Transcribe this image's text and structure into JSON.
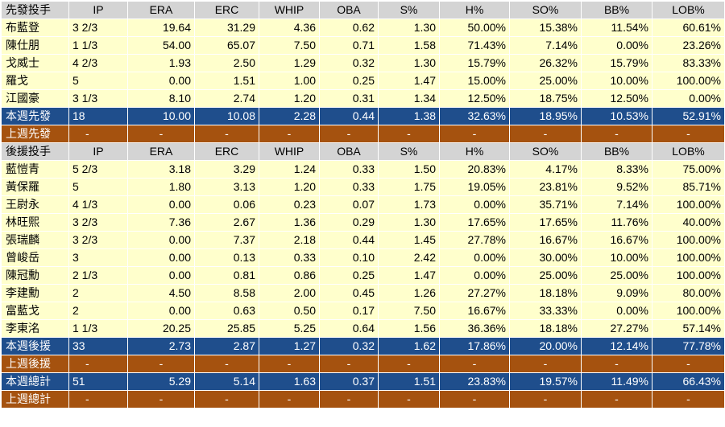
{
  "headers": {
    "starters": [
      "先發投手",
      "IP",
      "ERA",
      "ERC",
      "WHIP",
      "OBA",
      "S%",
      "H%",
      "SO%",
      "BB%",
      "LOB%"
    ],
    "relievers": [
      "後援投手",
      "IP",
      "ERA",
      "ERC",
      "WHIP",
      "OBA",
      "S%",
      "H%",
      "SO%",
      "BB%",
      "LOB%"
    ]
  },
  "starters": [
    [
      "布藍登",
      "3 2/3",
      "19.64",
      "31.29",
      "4.36",
      "0.62",
      "1.30",
      "50.00%",
      "15.38%",
      "11.54%",
      "60.61%"
    ],
    [
      "陳仕朋",
      "1 1/3",
      "54.00",
      "65.07",
      "7.50",
      "0.71",
      "1.58",
      "71.43%",
      "7.14%",
      "0.00%",
      "23.26%"
    ],
    [
      "戈威士",
      "4 2/3",
      "1.93",
      "2.50",
      "1.29",
      "0.32",
      "1.30",
      "15.79%",
      "26.32%",
      "15.79%",
      "83.33%"
    ],
    [
      "羅戈",
      "5",
      "0.00",
      "1.51",
      "1.00",
      "0.25",
      "1.47",
      "15.00%",
      "25.00%",
      "10.00%",
      "100.00%"
    ],
    [
      "江國豪",
      "3 1/3",
      "8.10",
      "2.74",
      "1.20",
      "0.31",
      "1.34",
      "12.50%",
      "18.75%",
      "12.50%",
      "0.00%"
    ]
  ],
  "starters_this_week": [
    "本週先發",
    "18",
    "10.00",
    "10.08",
    "2.28",
    "0.44",
    "1.38",
    "32.63%",
    "18.95%",
    "10.53%",
    "52.91%"
  ],
  "starters_last_week": [
    "上週先發",
    "-",
    "-",
    "-",
    "-",
    "-",
    "-",
    "-",
    "-",
    "-",
    "-"
  ],
  "relievers": [
    [
      "藍愷青",
      "5 2/3",
      "3.18",
      "3.29",
      "1.24",
      "0.33",
      "1.50",
      "20.83%",
      "4.17%",
      "8.33%",
      "75.00%"
    ],
    [
      "黃保羅",
      "5",
      "1.80",
      "3.13",
      "1.20",
      "0.33",
      "1.75",
      "19.05%",
      "23.81%",
      "9.52%",
      "85.71%"
    ],
    [
      "王尉永",
      "4 1/3",
      "0.00",
      "0.06",
      "0.23",
      "0.07",
      "1.73",
      "0.00%",
      "35.71%",
      "7.14%",
      "100.00%"
    ],
    [
      "林旺熙",
      "3 2/3",
      "7.36",
      "2.67",
      "1.36",
      "0.29",
      "1.30",
      "17.65%",
      "17.65%",
      "11.76%",
      "40.00%"
    ],
    [
      "張瑞麟",
      "3 2/3",
      "0.00",
      "7.37",
      "2.18",
      "0.44",
      "1.45",
      "27.78%",
      "16.67%",
      "16.67%",
      "100.00%"
    ],
    [
      "曾峻岳",
      "3",
      "0.00",
      "0.13",
      "0.33",
      "0.10",
      "2.42",
      "0.00%",
      "30.00%",
      "10.00%",
      "100.00%"
    ],
    [
      "陳冠勳",
      "2 1/3",
      "0.00",
      "0.81",
      "0.86",
      "0.25",
      "1.47",
      "0.00%",
      "25.00%",
      "25.00%",
      "100.00%"
    ],
    [
      "李建勳",
      "2",
      "4.50",
      "8.58",
      "2.00",
      "0.45",
      "1.26",
      "27.27%",
      "18.18%",
      "9.09%",
      "80.00%"
    ],
    [
      "富藍戈",
      "2",
      "0.00",
      "0.63",
      "0.50",
      "0.17",
      "7.50",
      "16.67%",
      "33.33%",
      "0.00%",
      "100.00%"
    ],
    [
      "李東洺",
      "1 1/3",
      "20.25",
      "25.85",
      "5.25",
      "0.64",
      "1.56",
      "36.36%",
      "18.18%",
      "27.27%",
      "57.14%"
    ]
  ],
  "relievers_this_week": [
    "本週後援",
    "33",
    "2.73",
    "2.87",
    "1.27",
    "0.32",
    "1.62",
    "17.86%",
    "20.00%",
    "12.14%",
    "77.78%"
  ],
  "relievers_last_week": [
    "上週後援",
    "-",
    "-",
    "-",
    "-",
    "-",
    "-",
    "-",
    "-",
    "-",
    "-"
  ],
  "total_this_week": [
    "本週總計",
    "51",
    "5.29",
    "5.14",
    "1.63",
    "0.37",
    "1.51",
    "23.83%",
    "19.57%",
    "11.49%",
    "66.43%"
  ],
  "total_last_week": [
    "上週總計",
    "-",
    "-",
    "-",
    "-",
    "-",
    "-",
    "-",
    "-",
    "-",
    "-"
  ],
  "colors": {
    "header_bg": "#d4d4d4",
    "row_bg": "#ffffcc",
    "this_week_bg": "#1f4e8c",
    "last_week_bg": "#a5520f"
  }
}
